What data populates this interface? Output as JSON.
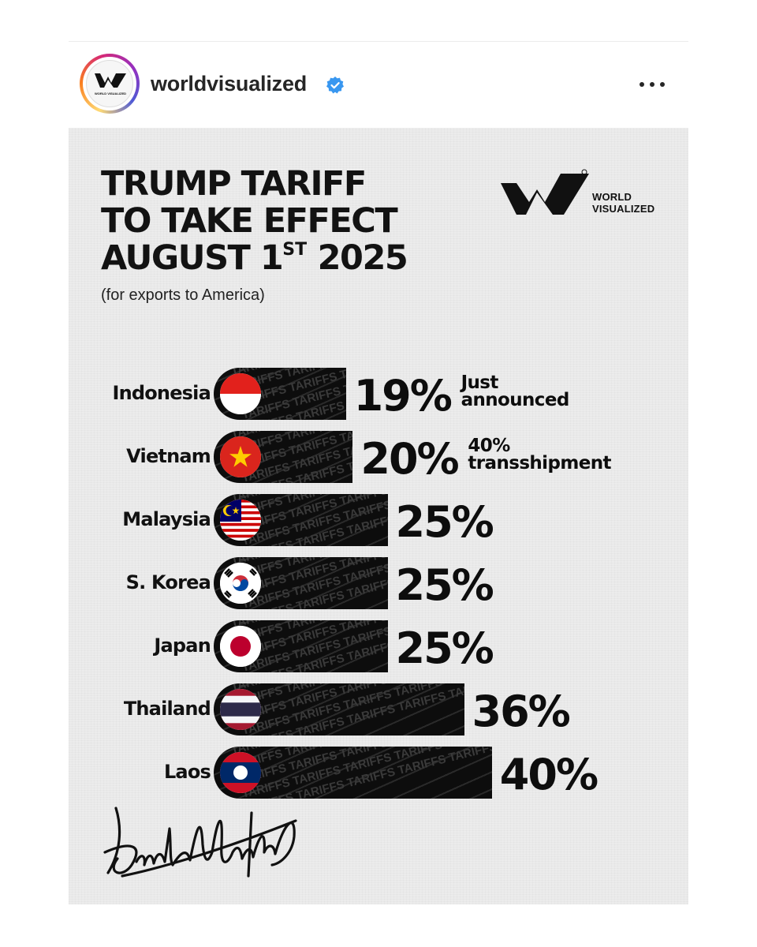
{
  "header": {
    "username": "worldvisualized",
    "avatar_text": "WORLD VISUALIZED",
    "verified_icon": "verified-badge-icon",
    "more_icon": "more-options-icon",
    "verified_color": "#3897f0"
  },
  "poster": {
    "title_line1": "TRUMP TARIFF",
    "title_line2": "TO TAKE EFFECT",
    "title_line3_main": "AUGUST 1",
    "title_line3_sup": "ST",
    "title_line3_year": " 2025",
    "subtitle": "(for exports to America)",
    "logo_line1": "WORLD",
    "logo_line2": "VISUALIZED",
    "bar_texture_word": "TARIFFS",
    "signature": "Donald J. Trump"
  },
  "chart_data": {
    "type": "bar",
    "orientation": "horizontal",
    "categories": [
      "Indonesia",
      "Vietnam",
      "Malaysia",
      "S. Korea",
      "Japan",
      "Thailand",
      "Laos"
    ],
    "values": [
      19,
      20,
      25,
      25,
      25,
      36,
      40
    ],
    "value_labels": [
      "19%",
      "20%",
      "25%",
      "25%",
      "25%",
      "36%",
      "40%"
    ],
    "annotations": [
      {
        "category": "Indonesia",
        "lines": [
          "Just",
          "announced"
        ]
      },
      {
        "category": "Vietnam",
        "lines": [
          "40%",
          "transshipment"
        ]
      }
    ],
    "title": "TRUMP TARIFF TO TAKE EFFECT AUGUST 1ST 2025",
    "subtitle": "(for exports to America)",
    "xlim": [
      0,
      40
    ],
    "grid": false,
    "bar_color": "#0d0d0d",
    "flag_icons": [
      "indonesia-flag-icon",
      "vietnam-flag-icon",
      "malaysia-flag-icon",
      "south-korea-flag-icon",
      "japan-flag-icon",
      "thailand-flag-icon",
      "laos-flag-icon"
    ]
  }
}
